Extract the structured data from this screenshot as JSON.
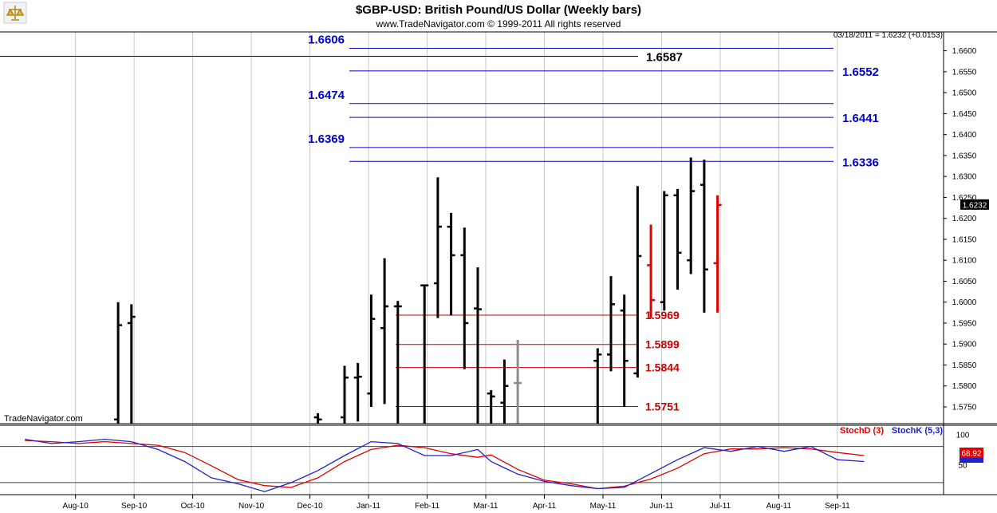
{
  "header": {
    "title": "$GBP-USD:  British Pound/US Dollar  (Weekly bars)",
    "subtitle": "www.TradeNavigator.com © 1999-2011 All rights reserved",
    "price_readout": "03/18/2011 = 1.6232 (+0.0153)",
    "logo_name": "scales-logo-icon",
    "watermark": "TradeNavigator.com"
  },
  "colors": {
    "bar": "#000000",
    "bar_grey": "#8c8c8c",
    "bar_red": "#e00000",
    "blue_level": "#0000c8",
    "red_level": "#cc0000",
    "stoch_d": "#e00000",
    "stoch_k": "#2020d0"
  },
  "chart_data": {
    "type": "ohlc",
    "x_ticks": [
      "Aug-10",
      "Sep-10",
      "Oct-10",
      "Nov-10",
      "Dec-10",
      "Jan-11",
      "Feb-11",
      "Mar-11",
      "Apr-11",
      "May-11",
      "Jun-11",
      "Jul-11",
      "Aug-11",
      "Sep-11"
    ],
    "y_ticks": [
      "1.6600",
      "1.6550",
      "1.6500",
      "1.6450",
      "1.6400",
      "1.6350",
      "1.6300",
      "1.6250",
      "1.6200",
      "1.6150",
      "1.6100",
      "1.6050",
      "1.6000",
      "1.5950",
      "1.5900",
      "1.5850",
      "1.5800",
      "1.5750"
    ],
    "ylim": [
      1.571,
      1.6645
    ],
    "last_price": "1.6232",
    "bars": [
      {
        "w": 7,
        "h": 1.6,
        "l": 1.571,
        "o": 1.572,
        "c": 1.5945
      },
      {
        "w": 8,
        "h": 1.5995,
        "l": 1.571,
        "o": 1.595,
        "c": 1.5965
      },
      {
        "w": 22,
        "h": 1.5735,
        "l": 1.571,
        "o": 1.5725,
        "c": 1.572
      },
      {
        "w": 24,
        "h": 1.5848,
        "l": 1.571,
        "o": 1.5725,
        "c": 1.582
      },
      {
        "w": 25,
        "h": 1.5855,
        "l": 1.5715,
        "o": 1.582,
        "c": 1.5822
      },
      {
        "w": 26,
        "h": 1.6018,
        "l": 1.575,
        "o": 1.5782,
        "c": 1.596
      },
      {
        "w": 27,
        "h": 1.6105,
        "l": 1.5757,
        "o": 1.5938,
        "c": 1.599
      },
      {
        "w": 28,
        "h": 1.6003,
        "l": 1.571,
        "o": 1.599,
        "c": 1.599
      },
      {
        "w": 30,
        "h": 1.6042,
        "l": 1.571,
        "o": 1.604,
        "c": 1.604
      },
      {
        "w": 31,
        "h": 1.6298,
        "l": 1.5962,
        "o": 1.6045,
        "c": 1.618
      },
      {
        "w": 32,
        "h": 1.6213,
        "l": 1.5968,
        "o": 1.618,
        "c": 1.6112
      },
      {
        "w": 33,
        "h": 1.6178,
        "l": 1.584,
        "o": 1.6112,
        "c": 1.595
      },
      {
        "w": 34,
        "h": 1.6083,
        "l": 1.571,
        "o": 1.5985,
        "c": 1.5983
      },
      {
        "w": 35,
        "h": 1.579,
        "l": 1.571,
        "o": 1.5782,
        "c": 1.5775
      },
      {
        "w": 36,
        "h": 1.5863,
        "l": 1.571,
        "o": 1.576,
        "c": 1.58
      },
      {
        "w": 37,
        "h": 1.591,
        "l": 1.571,
        "o": 1.5807,
        "c": 1.5807,
        "color": "bar_grey"
      },
      {
        "w": 43,
        "h": 1.589,
        "l": 1.571,
        "o": 1.586,
        "c": 1.5875
      },
      {
        "w": 44,
        "h": 1.6062,
        "l": 1.5835,
        "o": 1.5875,
        "c": 1.5995
      },
      {
        "w": 45,
        "h": 1.6018,
        "l": 1.575,
        "o": 1.598,
        "c": 1.586
      },
      {
        "w": 46,
        "h": 1.6277,
        "l": 1.582,
        "o": 1.583,
        "c": 1.611
      },
      {
        "w": 47,
        "h": 1.6185,
        "l": 1.5962,
        "o": 1.6088,
        "c": 1.6005,
        "color": "bar_red"
      },
      {
        "w": 48,
        "h": 1.6265,
        "l": 1.598,
        "o": 1.6,
        "c": 1.6255
      },
      {
        "w": 49,
        "h": 1.627,
        "l": 1.603,
        "o": 1.6255,
        "c": 1.6118
      },
      {
        "w": 50,
        "h": 1.6345,
        "l": 1.6067,
        "o": 1.61,
        "c": 1.6265
      },
      {
        "w": 51,
        "h": 1.634,
        "l": 1.5975,
        "o": 1.628,
        "c": 1.6078
      },
      {
        "w": 52,
        "h": 1.6255,
        "l": 1.5975,
        "o": 1.6093,
        "c": 1.6232,
        "color": "bar_red"
      }
    ],
    "blue_levels": [
      {
        "value": 1.6606,
        "label": "1.6606",
        "side": "left"
      },
      {
        "value": 1.6552,
        "label": "1.6552",
        "side": "right"
      },
      {
        "value": 1.6474,
        "label": "1.6474",
        "side": "left"
      },
      {
        "value": 1.6441,
        "label": "1.6441",
        "side": "right"
      },
      {
        "value": 1.6369,
        "label": "1.6369",
        "side": "left"
      },
      {
        "value": 1.6336,
        "label": "1.6336",
        "side": "right"
      }
    ],
    "black_level": {
      "value": 1.6587,
      "label": "1.6587"
    },
    "red_levels": [
      {
        "value": 1.5969,
        "label": "1.5969"
      },
      {
        "value": 1.5899,
        "label": "1.5899"
      },
      {
        "value": 1.5844,
        "label": "1.5844"
      },
      {
        "value": 1.5751,
        "label": "1.5751"
      }
    ],
    "stochastic": {
      "legend_d": "StochD (3)",
      "legend_k": "StochK (5,3)",
      "y_ticks": [
        "100",
        "50"
      ],
      "ylim": [
        0,
        110
      ],
      "ref_lines": [
        80,
        20
      ],
      "readout_d": "68.92",
      "k": [
        {
          "w": 0,
          "v": 92
        },
        {
          "w": 2,
          "v": 85
        },
        {
          "w": 4,
          "v": 88
        },
        {
          "w": 6,
          "v": 92
        },
        {
          "w": 8,
          "v": 88
        },
        {
          "w": 10,
          "v": 75
        },
        {
          "w": 12,
          "v": 55
        },
        {
          "w": 14,
          "v": 28
        },
        {
          "w": 16,
          "v": 18
        },
        {
          "w": 18,
          "v": 5
        },
        {
          "w": 20,
          "v": 20
        },
        {
          "w": 22,
          "v": 40
        },
        {
          "w": 24,
          "v": 65
        },
        {
          "w": 26,
          "v": 88
        },
        {
          "w": 28,
          "v": 85
        },
        {
          "w": 30,
          "v": 65
        },
        {
          "w": 32,
          "v": 65
        },
        {
          "w": 34,
          "v": 75
        },
        {
          "w": 35,
          "v": 55
        },
        {
          "w": 37,
          "v": 34
        },
        {
          "w": 39,
          "v": 22
        },
        {
          "w": 41,
          "v": 15
        },
        {
          "w": 43,
          "v": 10
        },
        {
          "w": 45,
          "v": 12
        },
        {
          "w": 47,
          "v": 35
        },
        {
          "w": 49,
          "v": 58
        },
        {
          "w": 51,
          "v": 78
        },
        {
          "w": 53,
          "v": 72
        },
        {
          "w": 55,
          "v": 80
        },
        {
          "w": 57,
          "v": 72
        },
        {
          "w": 59,
          "v": 80
        },
        {
          "w": 61,
          "v": 58
        },
        {
          "w": 63,
          "v": 55
        }
      ],
      "d": [
        {
          "w": 0,
          "v": 90
        },
        {
          "w": 2,
          "v": 88
        },
        {
          "w": 4,
          "v": 85
        },
        {
          "w": 6,
          "v": 88
        },
        {
          "w": 8,
          "v": 85
        },
        {
          "w": 10,
          "v": 82
        },
        {
          "w": 12,
          "v": 70
        },
        {
          "w": 14,
          "v": 48
        },
        {
          "w": 16,
          "v": 25
        },
        {
          "w": 18,
          "v": 15
        },
        {
          "w": 20,
          "v": 12
        },
        {
          "w": 22,
          "v": 28
        },
        {
          "w": 24,
          "v": 55
        },
        {
          "w": 26,
          "v": 75
        },
        {
          "w": 28,
          "v": 82
        },
        {
          "w": 30,
          "v": 78
        },
        {
          "w": 32,
          "v": 68
        },
        {
          "w": 34,
          "v": 62
        },
        {
          "w": 35,
          "v": 66
        },
        {
          "w": 37,
          "v": 42
        },
        {
          "w": 39,
          "v": 24
        },
        {
          "w": 41,
          "v": 18
        },
        {
          "w": 43,
          "v": 10
        },
        {
          "w": 45,
          "v": 14
        },
        {
          "w": 47,
          "v": 26
        },
        {
          "w": 49,
          "v": 44
        },
        {
          "w": 51,
          "v": 68
        },
        {
          "w": 53,
          "v": 76
        },
        {
          "w": 55,
          "v": 76
        },
        {
          "w": 57,
          "v": 78
        },
        {
          "w": 59,
          "v": 76
        },
        {
          "w": 61,
          "v": 70
        },
        {
          "w": 63,
          "v": 65
        }
      ]
    }
  }
}
